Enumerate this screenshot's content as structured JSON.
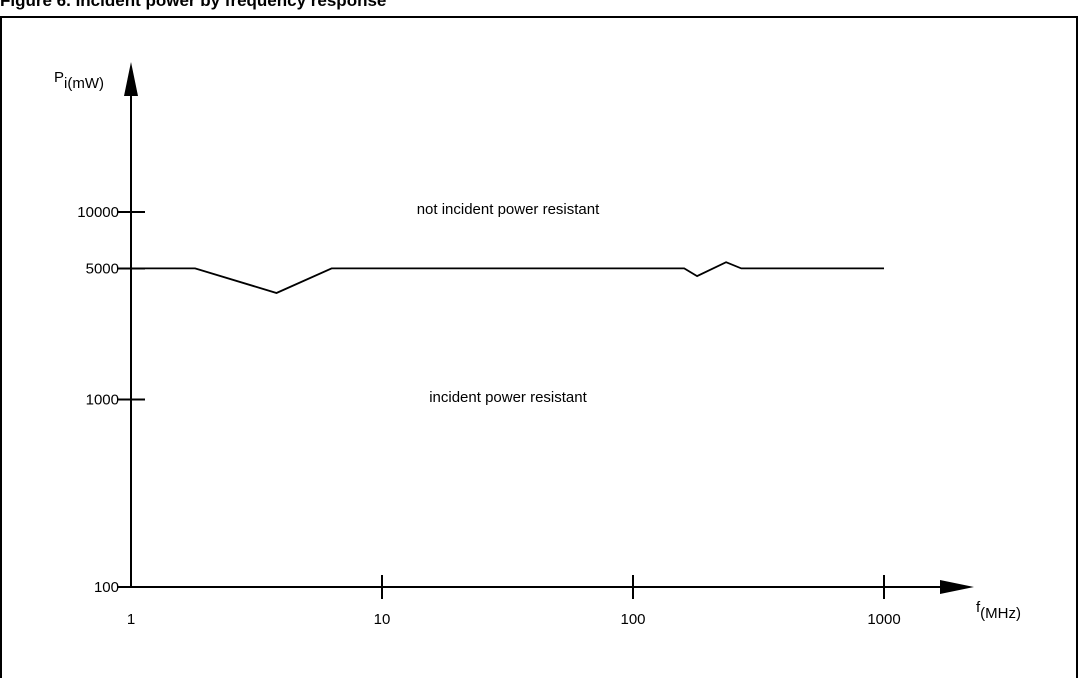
{
  "caption": "Figure 6. Incident power by frequency response",
  "chart_data": {
    "type": "line",
    "title": "",
    "xlabel": {
      "main": "f",
      "sub": "(MHz)"
    },
    "ylabel": {
      "main": "P",
      "sub": "i(mW)"
    },
    "x_scale": "log",
    "y_scale": "log",
    "xlim": [
      1,
      1000
    ],
    "ylim": [
      100,
      10000
    ],
    "x_ticks": [
      1,
      10,
      100,
      1000
    ],
    "x_tick_labels": [
      "1",
      "10",
      "100",
      "1000"
    ],
    "y_ticks": [
      100,
      1000,
      5000,
      10000
    ],
    "y_tick_labels": [
      "100",
      "1000",
      "5000",
      "10000"
    ],
    "grid": false,
    "annotations": [
      {
        "text": "not incident power resistant",
        "x": 30,
        "y": 8000
      },
      {
        "text": "incident power resistant",
        "x": 30,
        "y": 1000
      }
    ],
    "series": [
      {
        "x": [
          1,
          1.8,
          3.8,
          6.3,
          160,
          180,
          235,
          270,
          1000
        ],
        "y": [
          5000,
          5000,
          3700,
          5000,
          5000,
          4550,
          5400,
          5000,
          5000
        ]
      }
    ]
  }
}
